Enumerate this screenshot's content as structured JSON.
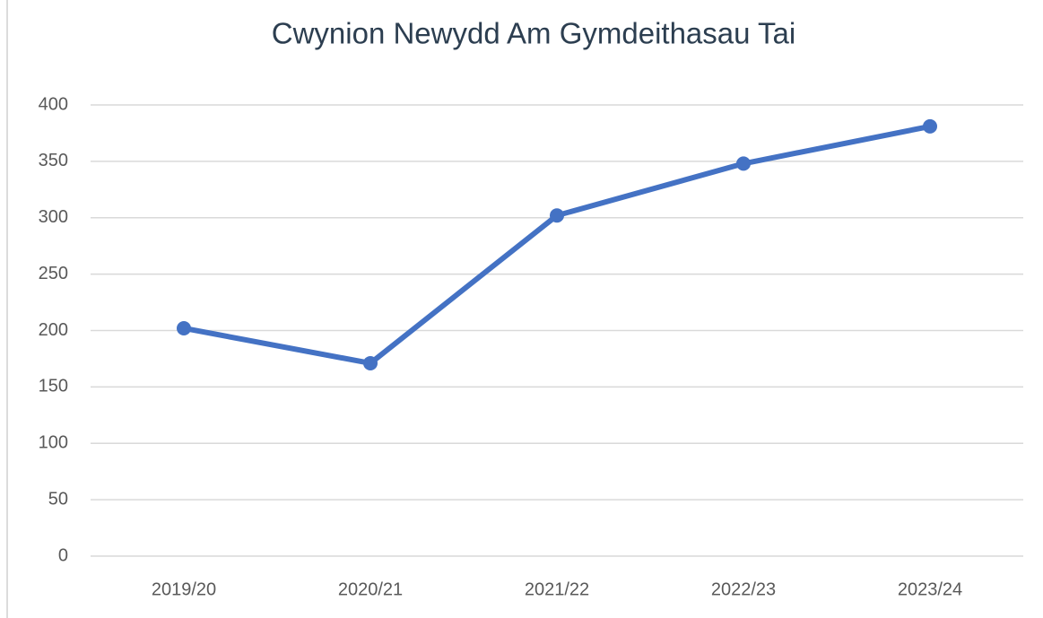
{
  "chart_data": {
    "type": "line",
    "title": "Cwynion Newydd Am Gymdeithasau Tai",
    "categories": [
      "2019/20",
      "2020/21",
      "2021/22",
      "2022/23",
      "2023/24"
    ],
    "values": [
      202,
      171,
      302,
      348,
      381
    ],
    "color": "#4472c4",
    "ylim": [
      0,
      400
    ],
    "yticks": [
      0,
      50,
      100,
      150,
      200,
      250,
      300,
      350,
      400
    ],
    "grid": true
  }
}
